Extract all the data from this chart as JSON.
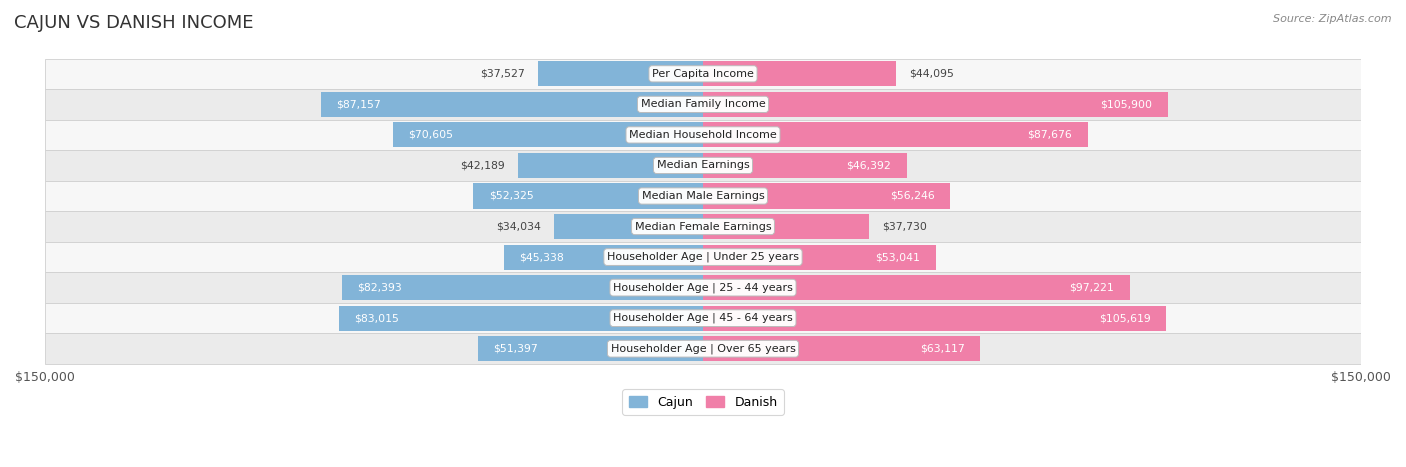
{
  "title": "CAJUN VS DANISH INCOME",
  "source": "Source: ZipAtlas.com",
  "categories": [
    "Per Capita Income",
    "Median Family Income",
    "Median Household Income",
    "Median Earnings",
    "Median Male Earnings",
    "Median Female Earnings",
    "Householder Age | Under 25 years",
    "Householder Age | 25 - 44 years",
    "Householder Age | 45 - 64 years",
    "Householder Age | Over 65 years"
  ],
  "cajun_values": [
    37527,
    87157,
    70605,
    42189,
    52325,
    34034,
    45338,
    82393,
    83015,
    51397
  ],
  "danish_values": [
    44095,
    105900,
    87676,
    46392,
    56246,
    37730,
    53041,
    97221,
    105619,
    63117
  ],
  "cajun_color": "#82b4d8",
  "danish_color": "#f07fa8",
  "max_val": 150000,
  "cajun_label": "Cajun",
  "danish_label": "Danish",
  "bar_height": 0.82,
  "row_colors": [
    "#f7f7f7",
    "#ebebeb"
  ],
  "title_fontsize": 13,
  "label_fontsize": 8.0,
  "value_fontsize": 7.8,
  "axis_label_fontsize": 9
}
